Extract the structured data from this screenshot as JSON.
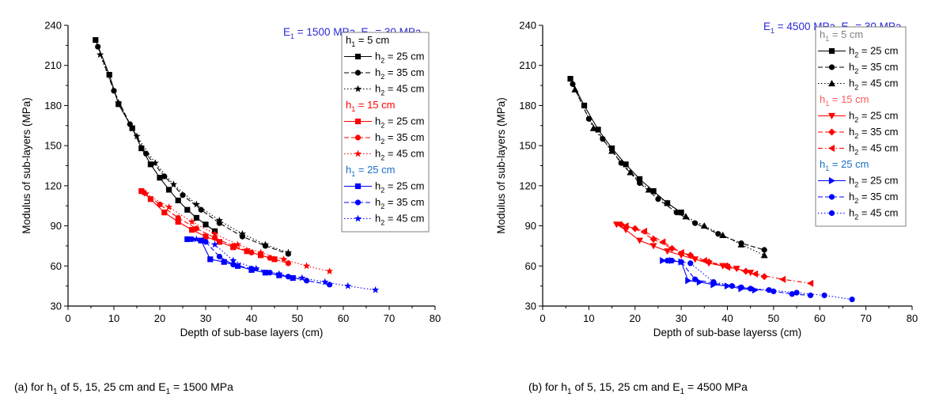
{
  "chart_data": [
    {
      "type": "line",
      "xlabel": "Depth of sub-base layers (cm)",
      "ylabel": "Modulus of sub-layers (MPa)",
      "xlim": [
        0,
        80
      ],
      "ylim": [
        30,
        240
      ],
      "xticks": [
        0,
        10,
        20,
        30,
        40,
        50,
        60,
        70,
        80
      ],
      "yticks": [
        30,
        60,
        90,
        120,
        150,
        180,
        210,
        240
      ],
      "annotation": {
        "base": "1500 MPa",
        "sub": "30 MPa"
      },
      "caption": {
        "pre": "(a) for h",
        "sub": "1",
        "mid": " of 5, 15, 25 cm and E",
        "sub2": "1",
        "post": " = 1500 MPa"
      },
      "legend": {
        "groups": [
          {
            "title": "h1 = 5 cm",
            "title_pre": "h",
            "title_sub": "1",
            "title_post": " = 5 cm",
            "color": "#000000",
            "entries": [
              {
                "pre": "h",
                "sub": "2",
                "post": " = 25 cm",
                "marker": "square",
                "dash": "solid"
              },
              {
                "pre": "h",
                "sub": "2",
                "post": " = 35 cm",
                "marker": "circle",
                "dash": "dash"
              },
              {
                "pre": "h",
                "sub": "2",
                "post": " = 45 cm",
                "marker": "star",
                "dash": "dot"
              }
            ]
          },
          {
            "title": "h1 = 15 cm",
            "title_pre": "h",
            "title_sub": "1",
            "title_post": " = 15 cm",
            "color": "#ff0000",
            "entries": [
              {
                "pre": "h",
                "sub": "2",
                "post": " = 25 cm",
                "marker": "square",
                "dash": "solid"
              },
              {
                "pre": "h",
                "sub": "2",
                "post": " = 35 cm",
                "marker": "circle",
                "dash": "dash"
              },
              {
                "pre": "h",
                "sub": "2",
                "post": " = 45 cm",
                "marker": "star",
                "dash": "dot"
              }
            ]
          },
          {
            "title": "h1 = 25 cm",
            "title_pre": "h",
            "title_sub": "1",
            "title_post": " = 25 cm",
            "color": "#0000ff",
            "title_color": "#1a6fc9",
            "entries": [
              {
                "pre": "h",
                "sub": "2",
                "post": " = 25 cm",
                "marker": "square",
                "dash": "solid"
              },
              {
                "pre": "h",
                "sub": "2",
                "post": " = 35 cm",
                "marker": "circle",
                "dash": "dash"
              },
              {
                "pre": "h",
                "sub": "2",
                "post": " = 45 cm",
                "marker": "star",
                "dash": "dot"
              }
            ]
          }
        ]
      },
      "series": [
        {
          "group": 0,
          "marker": "square",
          "dash": "solid",
          "color": "#000000",
          "x": [
            6,
            9,
            11,
            14,
            16,
            18,
            20,
            22,
            24,
            26,
            28,
            30,
            32
          ],
          "y": [
            229,
            203,
            181,
            163,
            148,
            136,
            126,
            117,
            109,
            102,
            96,
            91,
            86
          ]
        },
        {
          "group": 0,
          "marker": "circle",
          "dash": "dash",
          "color": "#000000",
          "x": [
            6.5,
            10,
            13.5,
            17,
            21,
            25,
            29,
            33,
            38,
            43,
            48
          ],
          "y": [
            224,
            191,
            166,
            144,
            127,
            113,
            102,
            92,
            82,
            75,
            69
          ]
        },
        {
          "group": 0,
          "marker": "star",
          "dash": "dot",
          "color": "#000000",
          "x": [
            7,
            11,
            15,
            19,
            23,
            28,
            33,
            38,
            43,
            48
          ],
          "y": [
            218,
            182,
            157,
            137,
            121,
            106,
            94,
            84,
            76,
            70
          ]
        },
        {
          "group": 1,
          "marker": "square",
          "dash": "solid",
          "color": "#ff0000",
          "x": [
            16,
            18,
            21,
            24,
            27,
            30,
            33,
            36,
            39,
            42,
            45
          ],
          "y": [
            116,
            110,
            100,
            93,
            87,
            82,
            78,
            74,
            71,
            68,
            65
          ]
        },
        {
          "group": 1,
          "marker": "circle",
          "dash": "dash",
          "color": "#ff0000",
          "x": [
            16.5,
            20,
            24,
            28,
            32,
            36,
            40,
            44,
            48
          ],
          "y": [
            115,
            106,
            96,
            88,
            81,
            75,
            70,
            66,
            62
          ]
        },
        {
          "group": 1,
          "marker": "star",
          "dash": "dot",
          "color": "#ff0000",
          "x": [
            17,
            22,
            27,
            32,
            37,
            42,
            47,
            52,
            57
          ],
          "y": [
            114,
            104,
            93,
            84,
            76,
            70,
            65,
            60,
            56
          ]
        },
        {
          "group": 2,
          "marker": "square",
          "dash": "solid",
          "color": "#0000ff",
          "x": [
            26,
            29,
            31,
            34,
            37,
            40,
            43,
            46,
            49
          ],
          "y": [
            80,
            79,
            65,
            63,
            60,
            57,
            55,
            53,
            51
          ]
        },
        {
          "group": 2,
          "marker": "circle",
          "dash": "dash",
          "color": "#0000ff",
          "x": [
            27,
            30,
            33,
            36,
            40,
            44,
            48,
            52,
            57
          ],
          "y": [
            80,
            78,
            67,
            61,
            58,
            55,
            52,
            49,
            46
          ]
        },
        {
          "group": 2,
          "marker": "star",
          "dash": "dot",
          "color": "#0000ff",
          "x": [
            28,
            32,
            36,
            41,
            46,
            51,
            56,
            61,
            67
          ],
          "y": [
            80,
            76,
            64,
            58,
            54,
            51,
            48,
            45,
            42
          ]
        }
      ]
    },
    {
      "type": "line",
      "xlabel": "Depth of sub-base layerss (cm)",
      "ylabel": "Modulus of sub-layers (MPa)",
      "xlim": [
        0,
        80
      ],
      "ylim": [
        30,
        240
      ],
      "xticks": [
        0,
        10,
        20,
        30,
        40,
        50,
        60,
        70,
        80
      ],
      "yticks": [
        30,
        60,
        90,
        120,
        150,
        180,
        210,
        240
      ],
      "annotation": {
        "base": "4500 MPa",
        "sub": "30 MPa"
      },
      "caption": {
        "pre": "(b) for h",
        "sub": "1",
        "mid": " of 5, 15, 25 cm and E",
        "sub2": "1",
        "post": " = 4500 MPa"
      },
      "legend": {
        "groups": [
          {
            "title": "h1 = 5 cm",
            "title_pre": "h",
            "title_sub": "1",
            "title_post": " = 5 cm",
            "color": "#000000",
            "title_color": "#808080",
            "entries": [
              {
                "pre": "h",
                "sub": "2",
                "post": " = 25 cm",
                "marker": "square",
                "dash": "solid"
              },
              {
                "pre": "h",
                "sub": "2",
                "post": " = 35 cm",
                "marker": "circle",
                "dash": "dash"
              },
              {
                "pre": "h",
                "sub": "2",
                "post": " = 45 cm",
                "marker": "triangle-up",
                "dash": "dot"
              }
            ]
          },
          {
            "title": "h1 = 15 cm",
            "title_pre": "h",
            "title_sub": "1",
            "title_post": " = 15 cm",
            "color": "#ff0000",
            "title_color": "#ff5a5a",
            "entries": [
              {
                "pre": "h",
                "sub": "2",
                "post": " = 25 cm",
                "marker": "triangle-down",
                "dash": "solid"
              },
              {
                "pre": "h",
                "sub": "2",
                "post": " = 35 cm",
                "marker": "diamond",
                "dash": "dash"
              },
              {
                "pre": "h",
                "sub": "2",
                "post": " = 45 cm",
                "marker": "triangle-left",
                "dash": "dashdot"
              }
            ]
          },
          {
            "title": "h1 = 25 cm",
            "title_pre": "h",
            "title_sub": "1",
            "title_post": " = 25 cm",
            "color": "#0000ff",
            "title_color": "#1a6fc9",
            "entries": [
              {
                "pre": "h",
                "sub": "2",
                "post": " = 25 cm",
                "marker": "triangle-right",
                "dash": "solid"
              },
              {
                "pre": "h",
                "sub": "2",
                "post": " = 35 cm",
                "marker": "circle",
                "dash": "dash"
              },
              {
                "pre": "h",
                "sub": "2",
                "post": " = 45 cm",
                "marker": "circle",
                "dash": "dot"
              }
            ]
          }
        ]
      },
      "series": [
        {
          "group": 0,
          "marker": "square",
          "dash": "solid",
          "color": "#000000",
          "x": [
            6,
            9,
            12,
            15,
            18,
            21,
            24,
            27,
            30
          ],
          "y": [
            200,
            180,
            162,
            148,
            136,
            125,
            116,
            107,
            100
          ]
        },
        {
          "group": 0,
          "marker": "circle",
          "dash": "dash",
          "color": "#000000",
          "x": [
            6.5,
            10,
            13,
            17,
            21,
            25,
            29,
            33,
            38,
            43,
            48
          ],
          "y": [
            196,
            170,
            155,
            137,
            122,
            110,
            100,
            92,
            84,
            77,
            72
          ]
        },
        {
          "group": 0,
          "marker": "triangle-up",
          "dash": "dot",
          "color": "#000000",
          "x": [
            7,
            11,
            15,
            19,
            23,
            27,
            31,
            35,
            39,
            43,
            48
          ],
          "y": [
            192,
            163,
            146,
            130,
            117,
            107,
            97,
            90,
            83,
            76,
            68
          ]
        },
        {
          "group": 1,
          "marker": "triangle-down",
          "dash": "solid",
          "color": "#ff0000",
          "x": [
            16,
            18,
            21,
            24,
            27,
            30,
            33,
            36,
            39,
            42,
            45
          ],
          "y": [
            91,
            87,
            79,
            75,
            71,
            68,
            65,
            62,
            60,
            58,
            55
          ]
        },
        {
          "group": 1,
          "marker": "diamond",
          "dash": "dash",
          "color": "#ff0000",
          "x": [
            17,
            20,
            24,
            28,
            32,
            36,
            40,
            44,
            48
          ],
          "y": [
            91,
            88,
            80,
            73,
            68,
            63,
            60,
            56,
            52
          ]
        },
        {
          "group": 1,
          "marker": "triangle-left",
          "dash": "dashdot",
          "color": "#ff0000",
          "x": [
            18,
            22,
            26,
            30,
            35,
            40,
            46,
            52,
            58
          ],
          "y": [
            90,
            86,
            78,
            70,
            64,
            59,
            54,
            50,
            47
          ]
        },
        {
          "group": 2,
          "marker": "triangle-right",
          "dash": "solid",
          "color": "#0000ff",
          "x": [
            26,
            28,
            30,
            31.5,
            34,
            37,
            40,
            43,
            46
          ],
          "y": [
            64,
            64,
            63,
            49,
            48,
            46,
            45,
            43,
            42
          ]
        },
        {
          "group": 2,
          "marker": "circle",
          "dash": "dash",
          "color": "#0000ff",
          "x": [
            27,
            30,
            33,
            37,
            41,
            45,
            50,
            54,
            58
          ],
          "y": [
            64,
            63,
            50,
            47,
            45,
            43,
            41,
            39,
            38
          ]
        },
        {
          "group": 2,
          "marker": "circle",
          "dash": "dot",
          "color": "#0000ff",
          "x": [
            28,
            32,
            37,
            43,
            49,
            55,
            61,
            67
          ],
          "y": [
            64,
            62,
            48,
            44,
            42,
            40,
            38,
            35
          ]
        }
      ]
    }
  ]
}
